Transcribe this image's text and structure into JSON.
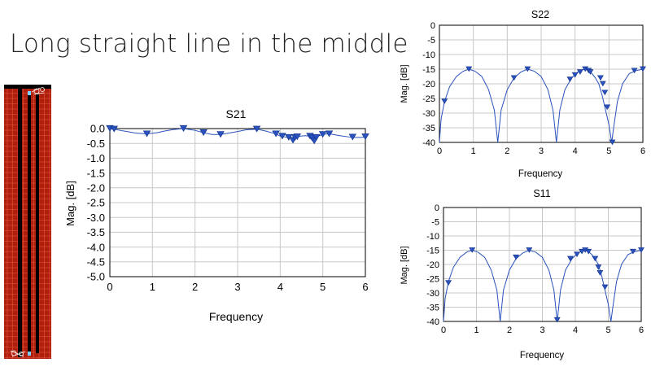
{
  "slide": {
    "title": "Long straight line in the middle"
  },
  "layout_image": {
    "description_icon": "pcb-layout-icon"
  },
  "colors": {
    "trace": "#2a52be",
    "marker": "#2a52be",
    "grid": "#c8c8c8",
    "board": "#b01e0e",
    "board_grid": "#e25c3a",
    "line": "#000000"
  },
  "chart_data": [
    {
      "id": "s21",
      "type": "line",
      "title": "S21",
      "xlabel": "Frequency",
      "ylabel": "Mag. [dB]",
      "xlim": [
        0,
        6
      ],
      "ylim": [
        -5.0,
        0.0
      ],
      "xticks": [
        "0",
        "1",
        "2",
        "3",
        "4",
        "5",
        "6"
      ],
      "yticks": [
        "0.0",
        "-0.5",
        "-1.0",
        "-1.5",
        "-2.0",
        "-2.5",
        "-3.0",
        "-3.5",
        "-4.0",
        "-4.5",
        "-5.0"
      ],
      "grid": true,
      "series": [
        {
          "x": [
            0,
            0.1,
            0.2,
            0.4,
            0.6,
            0.87,
            1.1,
            1.3,
            1.5,
            1.73,
            2.0,
            2.2,
            2.4,
            2.6,
            2.8,
            3.0,
            3.2,
            3.45,
            3.65,
            3.85,
            4.0,
            4.1,
            4.2,
            4.3,
            4.4,
            4.5,
            4.6,
            4.7,
            4.8,
            4.9,
            5.0,
            5.1,
            5.2,
            5.4,
            5.6,
            5.75,
            5.9,
            6.0
          ],
          "y": [
            0,
            -0.02,
            -0.05,
            -0.1,
            -0.15,
            -0.18,
            -0.14,
            -0.08,
            -0.03,
            0,
            -0.06,
            -0.14,
            -0.2,
            -0.2,
            -0.15,
            -0.1,
            -0.04,
            -0.02,
            -0.08,
            -0.16,
            -0.25,
            -0.28,
            -0.3,
            -0.3,
            -0.28,
            -0.25,
            -0.24,
            -0.26,
            -0.3,
            -0.25,
            -0.2,
            -0.18,
            -0.19,
            -0.24,
            -0.28,
            -0.3,
            -0.3,
            -0.28
          ]
        }
      ],
      "markers": [
        [
          0,
          0
        ],
        [
          0.1,
          -0.02
        ],
        [
          0.87,
          -0.18
        ],
        [
          1.73,
          0
        ],
        [
          2.2,
          -0.14
        ],
        [
          2.6,
          -0.2
        ],
        [
          3.45,
          -0.02
        ],
        [
          3.9,
          -0.18
        ],
        [
          4.05,
          -0.26
        ],
        [
          4.2,
          -0.3
        ],
        [
          4.3,
          -0.4
        ],
        [
          4.35,
          -0.3
        ],
        [
          4.4,
          -0.28
        ],
        [
          4.7,
          -0.26
        ],
        [
          4.75,
          -0.32
        ],
        [
          4.8,
          -0.42
        ],
        [
          4.85,
          -0.3
        ],
        [
          5.0,
          -0.2
        ],
        [
          5.15,
          -0.18
        ],
        [
          5.7,
          -0.29
        ],
        [
          6.0,
          -0.28
        ]
      ]
    },
    {
      "id": "s22",
      "type": "line",
      "title": "S22",
      "xlabel": "Frequency",
      "ylabel": "Mag. [dB]",
      "xlim": [
        0,
        6
      ],
      "ylim": [
        -40,
        0
      ],
      "xticks": [
        "0",
        "1",
        "2",
        "3",
        "4",
        "5",
        "6"
      ],
      "yticks": [
        "0",
        "-5",
        "-10",
        "-15",
        "-20",
        "-25",
        "-30",
        "-35",
        "-40"
      ],
      "grid": true,
      "series": [
        {
          "x": [
            0,
            0.05,
            0.15,
            0.3,
            0.5,
            0.7,
            0.87,
            1.05,
            1.25,
            1.45,
            1.62,
            1.72,
            1.82,
            2.0,
            2.2,
            2.4,
            2.6,
            2.8,
            3.0,
            3.2,
            3.35,
            3.45,
            3.55,
            3.7,
            3.9,
            4.05,
            4.2,
            4.3,
            4.4,
            4.5,
            4.6,
            4.7,
            4.8,
            4.9,
            5.0,
            5.08,
            5.15,
            5.25,
            5.4,
            5.6,
            5.8,
            6.0
          ],
          "y": [
            -40,
            -32,
            -26,
            -21,
            -17.5,
            -15.7,
            -15,
            -15.7,
            -17.5,
            -22,
            -29,
            -40,
            -29,
            -22,
            -18,
            -16,
            -15,
            -15.7,
            -17.5,
            -22,
            -29,
            -40,
            -29,
            -22,
            -18,
            -16.2,
            -15.3,
            -15,
            -15.5,
            -16.5,
            -18,
            -20,
            -24,
            -29,
            -34,
            -40,
            -34,
            -26,
            -20,
            -16.5,
            -15.5,
            -15
          ]
        }
      ],
      "markers": [
        [
          0.15,
          -26
        ],
        [
          0.87,
          -15
        ],
        [
          2.2,
          -18
        ],
        [
          2.6,
          -15
        ],
        [
          3.85,
          -18.5
        ],
        [
          4.0,
          -17
        ],
        [
          4.15,
          -16
        ],
        [
          4.3,
          -15
        ],
        [
          4.4,
          -15.5
        ],
        [
          4.45,
          -16
        ],
        [
          4.75,
          -18
        ],
        [
          4.82,
          -20
        ],
        [
          4.88,
          -23
        ],
        [
          4.95,
          -28
        ],
        [
          5.1,
          -40
        ],
        [
          5.75,
          -15.5
        ],
        [
          6.0,
          -15
        ]
      ]
    },
    {
      "id": "s11",
      "type": "line",
      "title": "S11",
      "xlabel": "Frequency",
      "ylabel": "Mag. [dB]",
      "xlim": [
        0,
        6
      ],
      "ylim": [
        -40,
        0
      ],
      "xticks": [
        "0",
        "1",
        "2",
        "3",
        "4",
        "5",
        "6"
      ],
      "yticks": [
        "0",
        "-5",
        "-10",
        "-15",
        "-20",
        "-25",
        "-30",
        "-35",
        "-40"
      ],
      "grid": true,
      "series": [
        {
          "x": [
            0,
            0.05,
            0.15,
            0.3,
            0.5,
            0.7,
            0.87,
            1.05,
            1.25,
            1.45,
            1.62,
            1.72,
            1.82,
            2.0,
            2.2,
            2.4,
            2.6,
            2.8,
            3.0,
            3.2,
            3.35,
            3.45,
            3.55,
            3.7,
            3.9,
            4.05,
            4.2,
            4.3,
            4.4,
            4.5,
            4.6,
            4.7,
            4.8,
            4.9,
            5.0,
            5.08,
            5.15,
            5.25,
            5.4,
            5.6,
            5.8,
            6.0
          ],
          "y": [
            -40,
            -32,
            -26,
            -21,
            -17.5,
            -15.7,
            -15,
            -15.7,
            -17.5,
            -22,
            -29,
            -40,
            -29,
            -22,
            -18,
            -16,
            -15,
            -15.7,
            -17.5,
            -22,
            -29,
            -40,
            -29,
            -22,
            -18,
            -16.2,
            -15.3,
            -15,
            -15.5,
            -16.5,
            -18,
            -20,
            -24,
            -29,
            -34,
            -40,
            -34,
            -26,
            -20,
            -16.5,
            -15.5,
            -15
          ]
        }
      ],
      "markers": [
        [
          0.15,
          -26.5
        ],
        [
          0.87,
          -15
        ],
        [
          2.2,
          -17.5
        ],
        [
          2.6,
          -15
        ],
        [
          3.45,
          -39.5
        ],
        [
          3.85,
          -18
        ],
        [
          4.05,
          -16.5
        ],
        [
          4.2,
          -15.5
        ],
        [
          4.3,
          -15
        ],
        [
          4.4,
          -15.5
        ],
        [
          4.6,
          -18
        ],
        [
          4.7,
          -21
        ],
        [
          4.75,
          -23
        ],
        [
          4.9,
          -28
        ],
        [
          5.75,
          -15.5
        ],
        [
          6.0,
          -15
        ]
      ]
    }
  ]
}
